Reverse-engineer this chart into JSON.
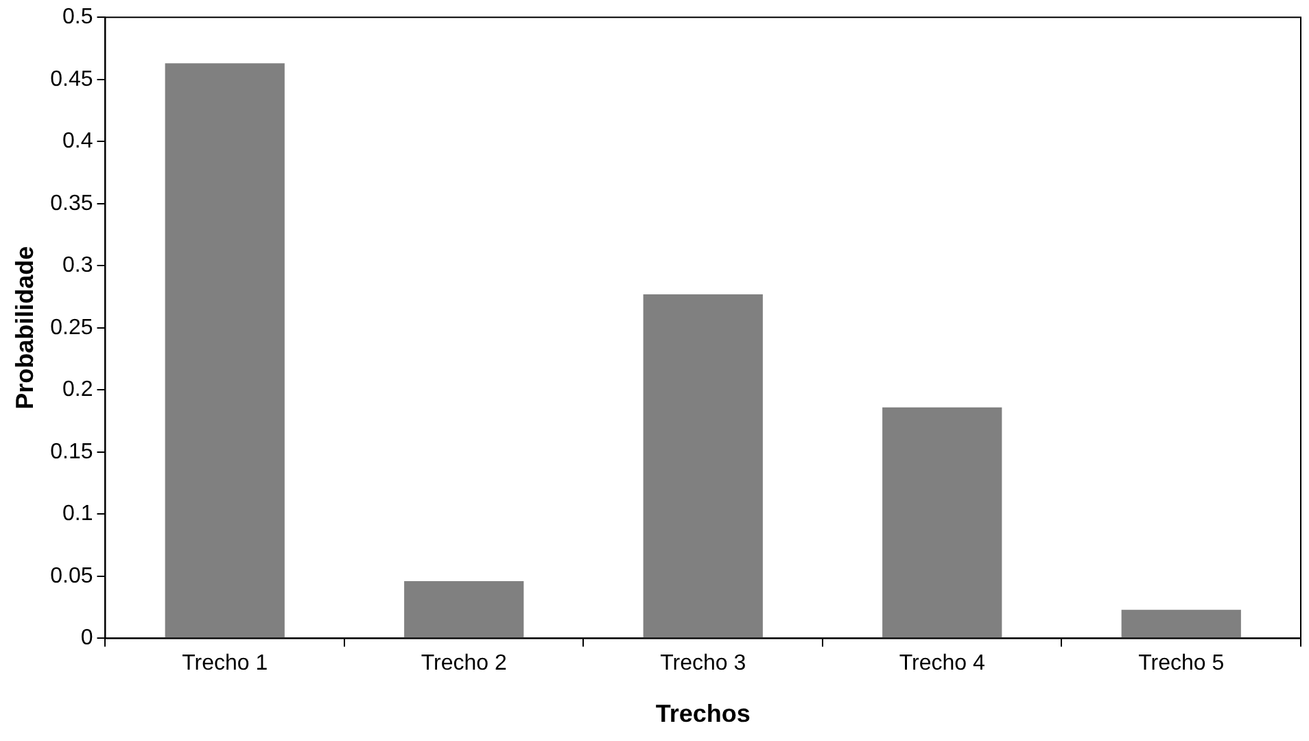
{
  "chart_data": {
    "type": "bar",
    "xlabel": "Trechos",
    "ylabel": "Probabilidade",
    "categories": [
      "Trecho 1",
      "Trecho 2",
      "Trecho 3",
      "Trecho 4",
      "Trecho 5"
    ],
    "values": [
      0.463,
      0.046,
      0.277,
      0.186,
      0.023
    ],
    "color": "#808080",
    "ylim": [
      0,
      0.5
    ],
    "yticks": [
      0,
      0.05,
      0.1,
      0.15,
      0.2,
      0.25,
      0.3,
      0.35,
      0.4,
      0.45,
      0.5
    ],
    "grid": false,
    "legend": false
  }
}
